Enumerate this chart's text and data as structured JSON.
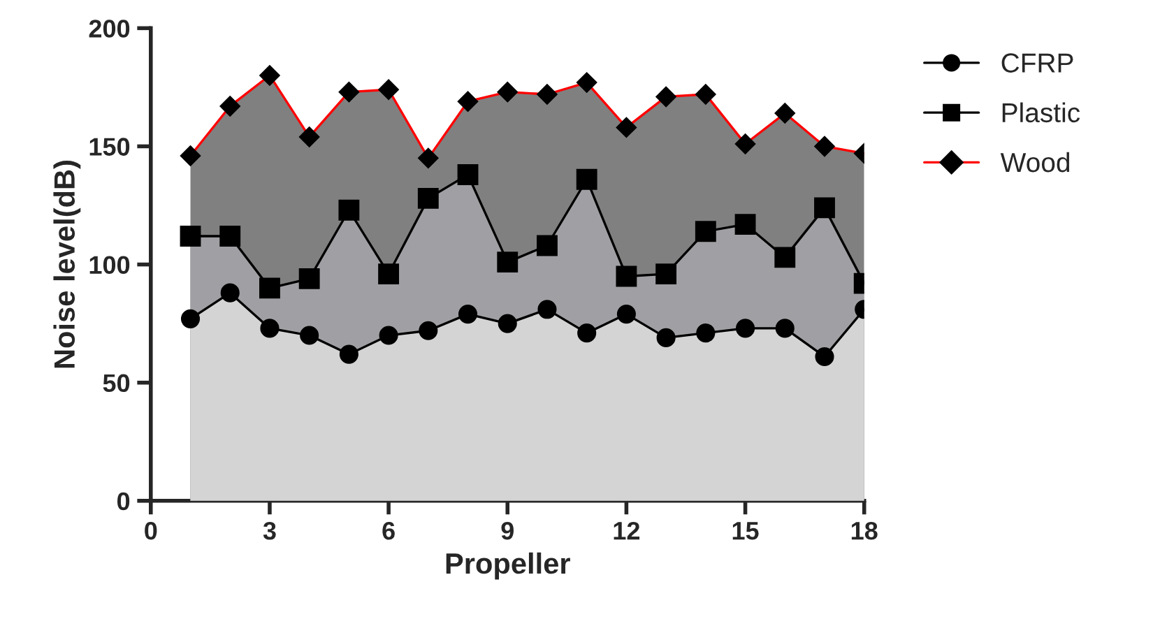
{
  "chart_data": {
    "type": "area",
    "xlabel": "Propeller",
    "ylabel": "Noise level(dB)",
    "x": [
      1,
      2,
      3,
      4,
      5,
      6,
      7,
      8,
      9,
      10,
      11,
      12,
      13,
      14,
      15,
      16,
      17,
      18
    ],
    "series": [
      {
        "name": "CFRP",
        "color": "#d4d4d4",
        "marker": "circle",
        "values": [
          77,
          88,
          73,
          70,
          62,
          70,
          72,
          79,
          75,
          81,
          71,
          79,
          69,
          71,
          73,
          73,
          61,
          81
        ]
      },
      {
        "name": "Plastic",
        "color": "#a0a0a4",
        "marker": "square",
        "values": [
          112,
          112,
          90,
          94,
          123,
          96,
          128,
          138,
          101,
          108,
          136,
          95,
          96,
          114,
          117,
          103,
          124,
          92
        ]
      },
      {
        "name": "Wood",
        "color": "#808080",
        "marker": "diamond",
        "values": [
          146,
          167,
          180,
          154,
          173,
          174,
          145,
          169,
          173,
          172,
          177,
          158,
          171,
          172,
          151,
          164,
          150,
          147
        ]
      }
    ],
    "xlim": [
      0,
      18
    ],
    "xticks": [
      0,
      3,
      6,
      9,
      12,
      15,
      18
    ],
    "ylim": [
      0,
      200
    ],
    "yticks": [
      0,
      50,
      100,
      150,
      200
    ],
    "grid": false,
    "legend": "top right",
    "line_style": "solid"
  }
}
